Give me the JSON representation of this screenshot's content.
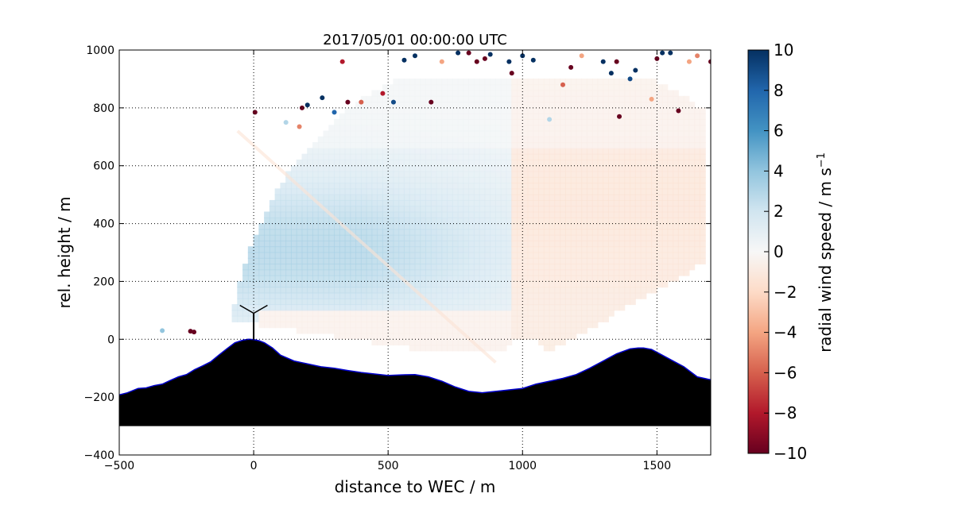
{
  "chart_data": {
    "type": "scatter",
    "title": "2017/05/01 00:00:00 UTC",
    "xlabel": "distance to WEC / m",
    "ylabel": "rel. height / m",
    "xlim": [
      -500,
      1700
    ],
    "ylim": [
      -400,
      1000
    ],
    "xticks": [
      -500,
      0,
      500,
      1000,
      1500
    ],
    "yticks": [
      -400,
      -200,
      0,
      200,
      400,
      600,
      800,
      1000
    ],
    "grid": true,
    "colormap": "RdBu",
    "colorbar": {
      "label": "radial wind speed / m s",
      "label_superscript": "−1",
      "min": -10,
      "max": 10,
      "ticks": [
        -10,
        -8,
        -6,
        -4,
        -2,
        0,
        2,
        4,
        6,
        8,
        10
      ]
    },
    "scan_origin": [
      1000,
      -100
    ],
    "scan_max_range": 1100,
    "terrain": {
      "x": [
        -500,
        -470,
        -430,
        -400,
        -370,
        -340,
        -310,
        -280,
        -250,
        -220,
        -190,
        -160,
        -130,
        -100,
        -70,
        -40,
        -20,
        0,
        20,
        40,
        70,
        100,
        150,
        200,
        250,
        300,
        350,
        400,
        450,
        500,
        550,
        600,
        650,
        700,
        750,
        800,
        850,
        900,
        950,
        1000,
        1050,
        1100,
        1150,
        1200,
        1250,
        1300,
        1350,
        1400,
        1430,
        1450,
        1480,
        1500,
        1550,
        1600,
        1650,
        1700
      ],
      "y": [
        -192,
        -185,
        -170,
        -168,
        -160,
        -155,
        -142,
        -130,
        -122,
        -105,
        -92,
        -78,
        -55,
        -33,
        -12,
        -3,
        0,
        -1,
        -5,
        -12,
        -30,
        -55,
        -75,
        -85,
        -95,
        -100,
        -108,
        -115,
        -120,
        -125,
        -123,
        -122,
        -130,
        -145,
        -165,
        -180,
        -185,
        -180,
        -175,
        -170,
        -155,
        -145,
        -135,
        -122,
        -100,
        -75,
        -50,
        -33,
        -30,
        -30,
        -35,
        -45,
        -70,
        -95,
        -130,
        -140
      ],
      "bottom": -300,
      "fill": "#000000",
      "edge": "#0000cc"
    },
    "turbine": {
      "x": 0,
      "hub_height": 90,
      "blade_length": 55
    },
    "wind_field": {
      "description_free": true,
      "regions": [
        {
          "xmin": -350,
          "xmax": 600,
          "ymin": 200,
          "ymax": 400,
          "value": 3.0
        },
        {
          "xmin": 600,
          "xmax": 1000,
          "ymin": 0,
          "ymax": 700,
          "value": 0.5
        },
        {
          "xmin": 1000,
          "xmax": 1600,
          "ymin": 0,
          "ymax": 800,
          "value": -1.0
        }
      ]
    },
    "outlier_points": [
      {
        "x": -340,
        "y": 30,
        "v": 4
      },
      {
        "x": -235,
        "y": 28,
        "v": -10
      },
      {
        "x": -222,
        "y": 25,
        "v": -10
      },
      {
        "x": 5,
        "y": 785,
        "v": -10
      },
      {
        "x": 120,
        "y": 750,
        "v": 3
      },
      {
        "x": 170,
        "y": 735,
        "v": -5
      },
      {
        "x": 180,
        "y": 800,
        "v": -10
      },
      {
        "x": 200,
        "y": 810,
        "v": 10
      },
      {
        "x": 255,
        "y": 835,
        "v": 10
      },
      {
        "x": 300,
        "y": 785,
        "v": 8
      },
      {
        "x": 330,
        "y": 960,
        "v": -8
      },
      {
        "x": 350,
        "y": 820,
        "v": -10
      },
      {
        "x": 400,
        "y": 820,
        "v": -6
      },
      {
        "x": 480,
        "y": 850,
        "v": -8
      },
      {
        "x": 520,
        "y": 820,
        "v": 9
      },
      {
        "x": 560,
        "y": 965,
        "v": 10
      },
      {
        "x": 600,
        "y": 980,
        "v": 10
      },
      {
        "x": 660,
        "y": 820,
        "v": -10
      },
      {
        "x": 700,
        "y": 960,
        "v": -4
      },
      {
        "x": 760,
        "y": 990,
        "v": 10
      },
      {
        "x": 800,
        "y": 990,
        "v": -10
      },
      {
        "x": 830,
        "y": 960,
        "v": -10
      },
      {
        "x": 860,
        "y": 970,
        "v": -10
      },
      {
        "x": 880,
        "y": 985,
        "v": 10
      },
      {
        "x": 950,
        "y": 960,
        "v": 10
      },
      {
        "x": 960,
        "y": 920,
        "v": -10
      },
      {
        "x": 1000,
        "y": 980,
        "v": 10
      },
      {
        "x": 1040,
        "y": 965,
        "v": 10
      },
      {
        "x": 1100,
        "y": 760,
        "v": 3
      },
      {
        "x": 1150,
        "y": 880,
        "v": -6
      },
      {
        "x": 1180,
        "y": 940,
        "v": -10
      },
      {
        "x": 1220,
        "y": 980,
        "v": -4
      },
      {
        "x": 1300,
        "y": 960,
        "v": 10
      },
      {
        "x": 1330,
        "y": 920,
        "v": 10
      },
      {
        "x": 1350,
        "y": 960,
        "v": -10
      },
      {
        "x": 1360,
        "y": 770,
        "v": -10
      },
      {
        "x": 1400,
        "y": 900,
        "v": 9
      },
      {
        "x": 1420,
        "y": 930,
        "v": 10
      },
      {
        "x": 1480,
        "y": 830,
        "v": -4
      },
      {
        "x": 1500,
        "y": 970,
        "v": -10
      },
      {
        "x": 1520,
        "y": 990,
        "v": 10
      },
      {
        "x": 1550,
        "y": 990,
        "v": 10
      },
      {
        "x": 1580,
        "y": 790,
        "v": -10
      },
      {
        "x": 1620,
        "y": 960,
        "v": -4
      },
      {
        "x": 1650,
        "y": 980,
        "v": -5
      },
      {
        "x": 1700,
        "y": 960,
        "v": -10
      }
    ]
  }
}
